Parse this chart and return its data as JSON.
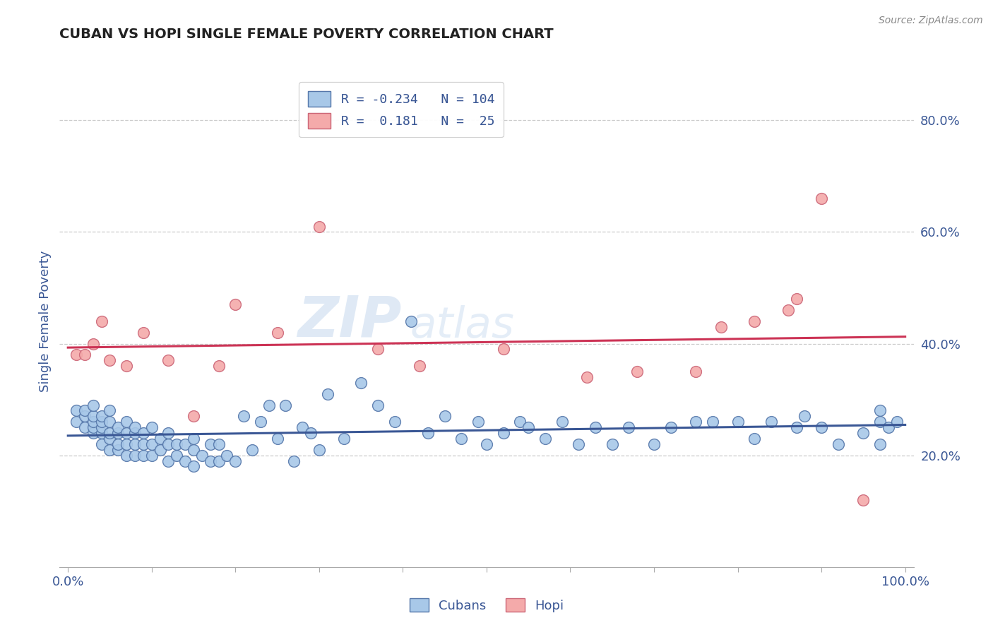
{
  "title": "CUBAN VS HOPI SINGLE FEMALE POVERTY CORRELATION CHART",
  "source": "Source: ZipAtlas.com",
  "ylabel": "Single Female Poverty",
  "xlim": [
    -0.01,
    1.01
  ],
  "ylim": [
    0.0,
    0.88
  ],
  "y_ticks": [
    0.2,
    0.4,
    0.6,
    0.8
  ],
  "y_tick_labels": [
    "20.0%",
    "40.0%",
    "60.0%",
    "80.0%"
  ],
  "x_tick_positions": [
    0.0,
    0.1,
    0.2,
    0.3,
    0.4,
    0.5,
    0.6,
    0.7,
    0.8,
    0.9,
    1.0
  ],
  "x_tick_labels": [
    "0.0%",
    "",
    "",
    "",
    "",
    "",
    "",
    "",
    "",
    "",
    "100.0%"
  ],
  "blue_color": "#a8c8e8",
  "blue_edge_color": "#5577aa",
  "blue_line_color": "#3a5795",
  "pink_color": "#f4aaaa",
  "pink_edge_color": "#cc6677",
  "pink_line_color": "#cc3355",
  "r_blue": -0.234,
  "n_blue": 104,
  "r_pink": 0.181,
  "n_pink": 25,
  "text_color": "#3a5795",
  "title_color": "#222222",
  "source_color": "#888888",
  "background_color": "#ffffff",
  "grid_color": "#cccccc",
  "watermark": "ZIPatlas",
  "blue_scatter_x": [
    0.01,
    0.01,
    0.02,
    0.02,
    0.02,
    0.03,
    0.03,
    0.03,
    0.03,
    0.03,
    0.04,
    0.04,
    0.04,
    0.04,
    0.04,
    0.05,
    0.05,
    0.05,
    0.05,
    0.05,
    0.06,
    0.06,
    0.06,
    0.06,
    0.07,
    0.07,
    0.07,
    0.07,
    0.08,
    0.08,
    0.08,
    0.08,
    0.09,
    0.09,
    0.09,
    0.1,
    0.1,
    0.1,
    0.11,
    0.11,
    0.12,
    0.12,
    0.12,
    0.13,
    0.13,
    0.14,
    0.14,
    0.15,
    0.15,
    0.15,
    0.16,
    0.17,
    0.17,
    0.18,
    0.18,
    0.19,
    0.2,
    0.21,
    0.22,
    0.23,
    0.24,
    0.25,
    0.26,
    0.27,
    0.28,
    0.29,
    0.3,
    0.31,
    0.33,
    0.35,
    0.37,
    0.39,
    0.41,
    0.43,
    0.45,
    0.47,
    0.49,
    0.5,
    0.52,
    0.54,
    0.55,
    0.57,
    0.59,
    0.61,
    0.63,
    0.65,
    0.67,
    0.7,
    0.72,
    0.75,
    0.77,
    0.8,
    0.82,
    0.84,
    0.87,
    0.88,
    0.9,
    0.92,
    0.95,
    0.97,
    0.97,
    0.97,
    0.98,
    0.99
  ],
  "blue_scatter_y": [
    0.26,
    0.28,
    0.25,
    0.27,
    0.28,
    0.24,
    0.25,
    0.26,
    0.27,
    0.29,
    0.22,
    0.24,
    0.25,
    0.26,
    0.27,
    0.21,
    0.23,
    0.24,
    0.26,
    0.28,
    0.21,
    0.22,
    0.24,
    0.25,
    0.2,
    0.22,
    0.24,
    0.26,
    0.2,
    0.22,
    0.24,
    0.25,
    0.2,
    0.22,
    0.24,
    0.2,
    0.22,
    0.25,
    0.21,
    0.23,
    0.19,
    0.22,
    0.24,
    0.2,
    0.22,
    0.19,
    0.22,
    0.18,
    0.21,
    0.23,
    0.2,
    0.19,
    0.22,
    0.19,
    0.22,
    0.2,
    0.19,
    0.27,
    0.21,
    0.26,
    0.29,
    0.23,
    0.29,
    0.19,
    0.25,
    0.24,
    0.21,
    0.31,
    0.23,
    0.33,
    0.29,
    0.26,
    0.44,
    0.24,
    0.27,
    0.23,
    0.26,
    0.22,
    0.24,
    0.26,
    0.25,
    0.23,
    0.26,
    0.22,
    0.25,
    0.22,
    0.25,
    0.22,
    0.25,
    0.26,
    0.26,
    0.26,
    0.23,
    0.26,
    0.25,
    0.27,
    0.25,
    0.22,
    0.24,
    0.22,
    0.26,
    0.28,
    0.25,
    0.26
  ],
  "pink_scatter_x": [
    0.01,
    0.02,
    0.03,
    0.04,
    0.05,
    0.07,
    0.09,
    0.12,
    0.15,
    0.18,
    0.2,
    0.25,
    0.3,
    0.37,
    0.42,
    0.52,
    0.62,
    0.68,
    0.75,
    0.78,
    0.82,
    0.86,
    0.87,
    0.9,
    0.95
  ],
  "pink_scatter_y": [
    0.38,
    0.38,
    0.4,
    0.44,
    0.37,
    0.36,
    0.42,
    0.37,
    0.27,
    0.36,
    0.47,
    0.42,
    0.61,
    0.39,
    0.36,
    0.39,
    0.34,
    0.35,
    0.35,
    0.43,
    0.44,
    0.46,
    0.48,
    0.66,
    0.12
  ]
}
